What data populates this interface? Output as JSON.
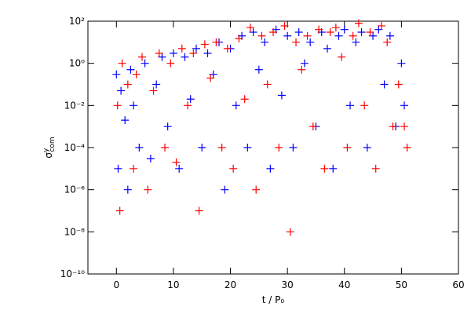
{
  "chart_data": {
    "type": "scatter",
    "xlabel": "t / P₀",
    "ylabel": {
      "symbol": "σ",
      "sup": "y",
      "sub": "com"
    },
    "xlim": [
      -5,
      60
    ],
    "xticks": [
      0,
      10,
      20,
      30,
      40,
      50,
      60
    ],
    "ylim": [
      1e-10,
      100
    ],
    "log_y": true,
    "yticks": [
      {
        "value": 1e-10,
        "label": "10⁻¹⁰"
      },
      {
        "value": 1e-08,
        "label": "10⁻⁸"
      },
      {
        "value": 1e-06,
        "label": "10⁻⁶"
      },
      {
        "value": 0.0001,
        "label": "10⁻⁴"
      },
      {
        "value": 0.01,
        "label": "10⁻²"
      },
      {
        "value": 1,
        "label": "10⁰"
      },
      {
        "value": 100,
        "label": "10²"
      }
    ],
    "series": [
      {
        "color": "#0000ff",
        "x": [
          0,
          0.3,
          0.8,
          1.5,
          2,
          2.5,
          3,
          4,
          5,
          6,
          7,
          8,
          9,
          10,
          11,
          12,
          13,
          14,
          15,
          16,
          17,
          18,
          19,
          20,
          21,
          22,
          23,
          24,
          25,
          26,
          27,
          28,
          29,
          30,
          31,
          32,
          33,
          34,
          35,
          36,
          37,
          38,
          39,
          40,
          41,
          42,
          43,
          44,
          45,
          46,
          47,
          48,
          49,
          50,
          50.5
        ],
        "values": [
          0.3,
          1e-05,
          0.05,
          0.002,
          1e-06,
          0.5,
          0.01,
          0.0001,
          1,
          3e-05,
          0.1,
          2,
          0.001,
          3,
          1e-05,
          2,
          0.02,
          5,
          0.0001,
          3,
          0.3,
          10,
          1e-06,
          5,
          0.01,
          20,
          0.0001,
          30,
          0.5,
          10,
          1e-05,
          40,
          0.03,
          20,
          0.0001,
          30,
          1,
          10,
          0.001,
          30,
          5,
          1e-05,
          20,
          40,
          0.01,
          10,
          30,
          0.0001,
          20,
          40,
          0.1,
          20,
          0.001,
          1,
          0.01
        ]
      },
      {
        "color": "#ff0000",
        "x": [
          0.2,
          0.6,
          1,
          2,
          3,
          3.5,
          4.5,
          5.5,
          6.5,
          7.5,
          8.5,
          9.5,
          10.5,
          11.5,
          12.5,
          13.5,
          14.5,
          15.5,
          16.5,
          17.5,
          18.5,
          19.5,
          20.5,
          21.5,
          22.5,
          23.5,
          24.5,
          25.5,
          26.5,
          27.5,
          28.5,
          29.5,
          30.5,
          31.5,
          32.5,
          33.5,
          34.5,
          35.5,
          36.5,
          37.5,
          38.5,
          39.5,
          40.5,
          41.5,
          42.5,
          43.5,
          44.5,
          45.5,
          46.5,
          47.5,
          48.5,
          49.5,
          50.5,
          51
        ],
        "values": [
          0.01,
          1e-07,
          1,
          0.1,
          1e-05,
          0.3,
          2,
          1e-06,
          0.05,
          3,
          0.0001,
          1,
          2e-05,
          5,
          0.01,
          3,
          1e-07,
          8,
          0.2,
          10,
          0.0001,
          5,
          1e-05,
          15,
          0.02,
          50,
          1e-06,
          20,
          0.1,
          30,
          0.0001,
          60,
          1e-08,
          10,
          0.5,
          20,
          0.001,
          40,
          1e-05,
          30,
          50,
          2,
          0.0001,
          20,
          80,
          0.01,
          30,
          1e-05,
          60,
          10,
          0.001,
          0.1,
          0.001,
          0.0001
        ]
      }
    ]
  }
}
